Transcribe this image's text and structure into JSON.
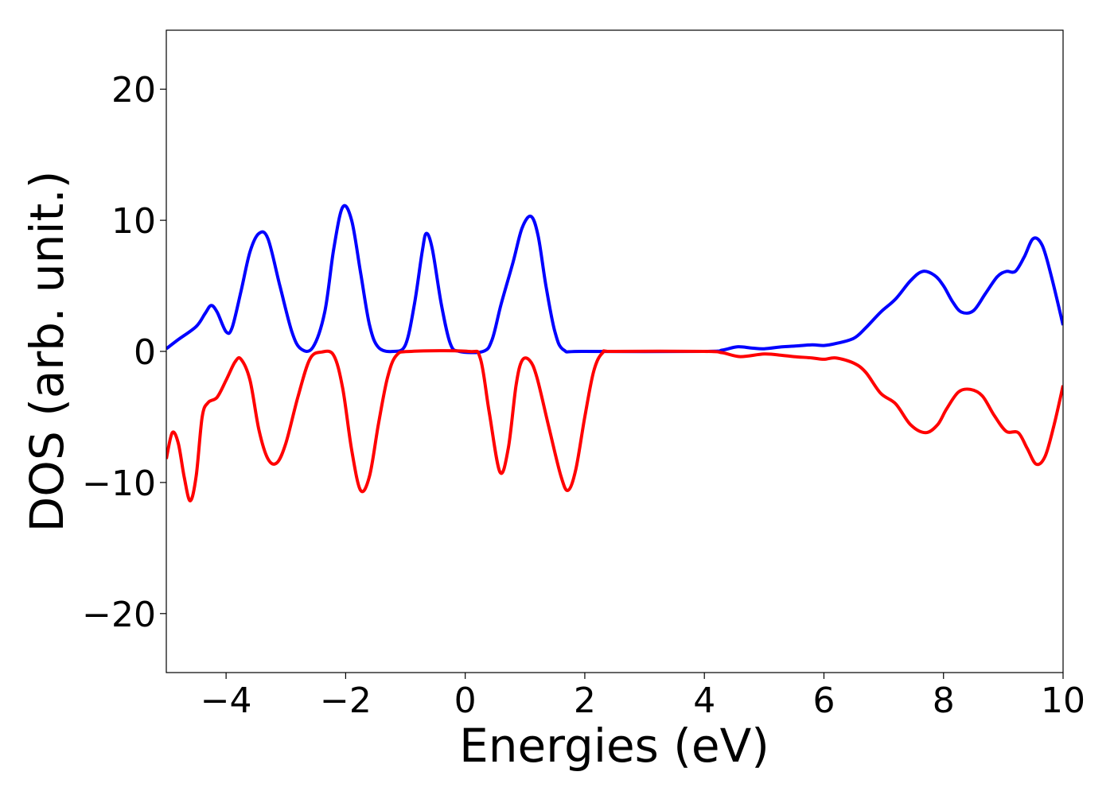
{
  "chart_data": {
    "type": "line",
    "xlabel": "Energies (eV)",
    "ylabel": "DOS (arb. unit.)",
    "xlim": [
      -5,
      10
    ],
    "ylim": [
      -24.5,
      24.5
    ],
    "xticks": [
      -4,
      -2,
      0,
      2,
      4,
      6,
      8,
      10
    ],
    "xtick_labels": [
      "−4",
      "−2",
      "0",
      "2",
      "4",
      "6",
      "8",
      "10"
    ],
    "yticks": [
      -20,
      -10,
      0,
      10,
      20
    ],
    "ytick_labels": [
      "−20",
      "−10",
      "0",
      "10",
      "20"
    ],
    "grid": false,
    "series": [
      {
        "color": "#0000ff",
        "points": [
          [
            -5.0,
            0.2
          ],
          [
            -4.8,
            0.9
          ],
          [
            -4.5,
            1.9
          ],
          [
            -4.35,
            2.9
          ],
          [
            -4.25,
            3.5
          ],
          [
            -4.15,
            3.0
          ],
          [
            -4.0,
            1.5
          ],
          [
            -3.9,
            1.8
          ],
          [
            -3.75,
            4.6
          ],
          [
            -3.6,
            7.6
          ],
          [
            -3.45,
            9.0
          ],
          [
            -3.3,
            8.6
          ],
          [
            -3.1,
            5.0
          ],
          [
            -2.9,
            1.5
          ],
          [
            -2.75,
            0.2
          ],
          [
            -2.55,
            0.3
          ],
          [
            -2.35,
            3.0
          ],
          [
            -2.2,
            7.8
          ],
          [
            -2.05,
            11.0
          ],
          [
            -1.9,
            10.0
          ],
          [
            -1.75,
            6.0
          ],
          [
            -1.6,
            2.0
          ],
          [
            -1.45,
            0.3
          ],
          [
            -1.2,
            0.0
          ],
          [
            -1.0,
            0.5
          ],
          [
            -0.85,
            3.6
          ],
          [
            -0.72,
            7.6
          ],
          [
            -0.65,
            9.0
          ],
          [
            -0.55,
            7.8
          ],
          [
            -0.4,
            3.6
          ],
          [
            -0.25,
            0.6
          ],
          [
            -0.1,
            0.0
          ],
          [
            0.3,
            0.0
          ],
          [
            0.45,
            0.9
          ],
          [
            0.6,
            3.6
          ],
          [
            0.8,
            6.8
          ],
          [
            0.95,
            9.4
          ],
          [
            1.1,
            10.3
          ],
          [
            1.22,
            8.8
          ],
          [
            1.35,
            5.0
          ],
          [
            1.5,
            1.5
          ],
          [
            1.65,
            0.1
          ],
          [
            2.0,
            0.0
          ],
          [
            4.0,
            0.0
          ],
          [
            4.3,
            0.1
          ],
          [
            4.55,
            0.35
          ],
          [
            4.8,
            0.25
          ],
          [
            5.0,
            0.2
          ],
          [
            5.3,
            0.35
          ],
          [
            5.5,
            0.4
          ],
          [
            5.8,
            0.5
          ],
          [
            6.0,
            0.45
          ],
          [
            6.2,
            0.6
          ],
          [
            6.5,
            1.0
          ],
          [
            6.7,
            1.8
          ],
          [
            6.95,
            3.0
          ],
          [
            7.2,
            4.0
          ],
          [
            7.45,
            5.4
          ],
          [
            7.65,
            6.1
          ],
          [
            7.85,
            5.8
          ],
          [
            8.0,
            5.0
          ],
          [
            8.15,
            3.8
          ],
          [
            8.3,
            3.0
          ],
          [
            8.5,
            3.1
          ],
          [
            8.7,
            4.4
          ],
          [
            8.9,
            5.7
          ],
          [
            9.05,
            6.1
          ],
          [
            9.2,
            6.1
          ],
          [
            9.35,
            7.2
          ],
          [
            9.5,
            8.6
          ],
          [
            9.65,
            8.1
          ],
          [
            9.8,
            5.8
          ],
          [
            10.0,
            2.0
          ]
        ]
      },
      {
        "color": "#ff0000",
        "points": [
          [
            -5.0,
            -8.2
          ],
          [
            -4.9,
            -6.2
          ],
          [
            -4.8,
            -7.0
          ],
          [
            -4.7,
            -9.6
          ],
          [
            -4.6,
            -11.4
          ],
          [
            -4.5,
            -9.5
          ],
          [
            -4.4,
            -5.0
          ],
          [
            -4.3,
            -3.9
          ],
          [
            -4.15,
            -3.5
          ],
          [
            -4.0,
            -2.2
          ],
          [
            -3.85,
            -0.8
          ],
          [
            -3.75,
            -0.6
          ],
          [
            -3.6,
            -2.2
          ],
          [
            -3.45,
            -6.0
          ],
          [
            -3.3,
            -8.2
          ],
          [
            -3.15,
            -8.5
          ],
          [
            -3.0,
            -7.0
          ],
          [
            -2.8,
            -3.5
          ],
          [
            -2.6,
            -0.6
          ],
          [
            -2.4,
            -0.05
          ],
          [
            -2.2,
            -0.3
          ],
          [
            -2.05,
            -2.8
          ],
          [
            -1.9,
            -7.5
          ],
          [
            -1.75,
            -10.6
          ],
          [
            -1.6,
            -9.5
          ],
          [
            -1.45,
            -5.5
          ],
          [
            -1.3,
            -2.0
          ],
          [
            -1.15,
            -0.3
          ],
          [
            -0.9,
            0.0
          ],
          [
            0.05,
            0.0
          ],
          [
            0.25,
            -0.5
          ],
          [
            0.4,
            -4.6
          ],
          [
            0.58,
            -9.2
          ],
          [
            0.72,
            -7.4
          ],
          [
            0.85,
            -2.6
          ],
          [
            0.95,
            -0.7
          ],
          [
            1.08,
            -0.7
          ],
          [
            1.2,
            -2.0
          ],
          [
            1.4,
            -5.8
          ],
          [
            1.6,
            -9.5
          ],
          [
            1.72,
            -10.6
          ],
          [
            1.85,
            -9.0
          ],
          [
            2.0,
            -5.0
          ],
          [
            2.15,
            -1.5
          ],
          [
            2.3,
            -0.1
          ],
          [
            2.5,
            0.0
          ],
          [
            4.0,
            0.0
          ],
          [
            4.3,
            -0.1
          ],
          [
            4.6,
            -0.4
          ],
          [
            5.0,
            -0.2
          ],
          [
            5.3,
            -0.3
          ],
          [
            5.5,
            -0.4
          ],
          [
            5.8,
            -0.5
          ],
          [
            6.0,
            -0.6
          ],
          [
            6.2,
            -0.5
          ],
          [
            6.5,
            -0.9
          ],
          [
            6.7,
            -1.6
          ],
          [
            6.95,
            -3.2
          ],
          [
            7.2,
            -4.0
          ],
          [
            7.45,
            -5.6
          ],
          [
            7.7,
            -6.2
          ],
          [
            7.9,
            -5.6
          ],
          [
            8.05,
            -4.4
          ],
          [
            8.25,
            -3.1
          ],
          [
            8.45,
            -2.9
          ],
          [
            8.65,
            -3.4
          ],
          [
            8.85,
            -4.9
          ],
          [
            9.05,
            -6.1
          ],
          [
            9.25,
            -6.2
          ],
          [
            9.4,
            -7.4
          ],
          [
            9.55,
            -8.6
          ],
          [
            9.7,
            -8.0
          ],
          [
            9.85,
            -5.6
          ],
          [
            10.0,
            -2.6
          ]
        ]
      }
    ]
  }
}
